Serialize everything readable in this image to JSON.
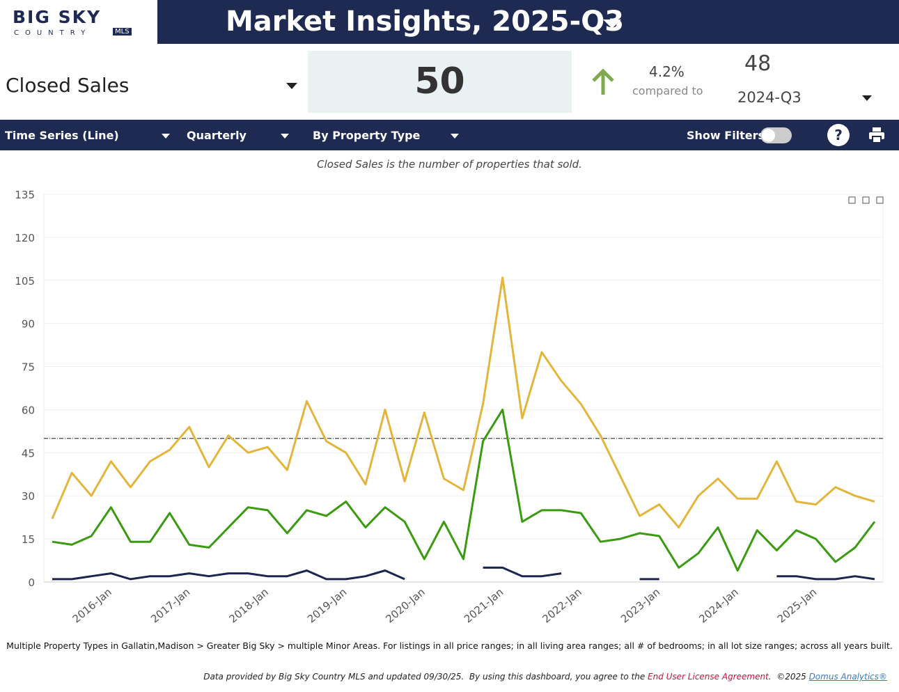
{
  "header": {
    "logo_top": "BIG SKY",
    "logo_bottom": "COUNTRY",
    "logo_badge": "MLS",
    "title": "Market Insights, 2025-Q3"
  },
  "kpi": {
    "metric": "Closed Sales",
    "value": "50",
    "change": "4.2%",
    "compared_label": "compared to",
    "previous_value": "48",
    "previous_period": "2024-Q3"
  },
  "toolbar": {
    "chart_type": "Time Series (Line)",
    "interval": "Quarterly",
    "grouping": "By Property Type",
    "filters_label": "Show Filters:"
  },
  "description": "Closed Sales is the number of properties that sold.",
  "chart_data": {
    "type": "line",
    "categories": [
      null,
      null,
      null,
      "2016-Jan",
      null,
      null,
      null,
      "2017-Jan",
      null,
      null,
      null,
      "2018-Jan",
      null,
      null,
      null,
      "2019-Jan",
      null,
      null,
      null,
      "2020-Jan",
      null,
      null,
      null,
      "2021-Jan",
      null,
      null,
      null,
      "2022-Jan",
      null,
      null,
      null,
      "2023-Jan",
      null,
      null,
      null,
      "2024-Jan",
      null,
      null,
      null,
      "2025-Jan",
      null,
      null,
      null
    ],
    "series": [
      {
        "color": "#e3b53b",
        "values": [
          22,
          38,
          30,
          42,
          33,
          42,
          46,
          54,
          40,
          51,
          45,
          47,
          39,
          63,
          49,
          45,
          34,
          60,
          35,
          59,
          36,
          32,
          62,
          106,
          57,
          80,
          70,
          62,
          51,
          37,
          23,
          27,
          19,
          30,
          36,
          29,
          29,
          42,
          28,
          27,
          33,
          30,
          28
        ]
      },
      {
        "color": "#3a9a10",
        "values": [
          14,
          13,
          16,
          26,
          14,
          14,
          24,
          13,
          12,
          19,
          26,
          25,
          17,
          25,
          23,
          28,
          19,
          26,
          21,
          8,
          21,
          8,
          49,
          60,
          21,
          25,
          25,
          24,
          14,
          15,
          17,
          16,
          5,
          10,
          19,
          4,
          18,
          11,
          18,
          15,
          7,
          12,
          21
        ]
      },
      {
        "color": "#1b2550",
        "values": [
          1,
          1,
          2,
          3,
          1,
          2,
          2,
          3,
          2,
          3,
          3,
          2,
          2,
          4,
          1,
          1,
          2,
          4,
          1,
          null,
          null,
          null,
          5,
          5,
          2,
          2,
          3,
          null,
          null,
          null,
          1,
          1,
          null,
          null,
          null,
          null,
          null,
          2,
          2,
          1,
          1,
          2,
          1
        ]
      }
    ],
    "reference_line": 50,
    "ylim": [
      0,
      135
    ],
    "yticks": [
      0,
      15,
      30,
      45,
      60,
      75,
      90,
      105,
      120,
      135
    ],
    "grid": true
  },
  "footnote": "Multiple Property Types in Gallatin,Madison > Greater Big Sky > multiple Minor Areas. For listings in all price ranges; in all living area ranges; all # of bedrooms; in all lot size ranges; across all years built.",
  "footer": {
    "text": "Data provided by Big Sky Country MLS and updated 09/30/25.  By using this dashboard, you agree to the ",
    "license": "End User License Agreement",
    "copyright": ".  ©2025 ",
    "vendor": "Domus Analytics®"
  }
}
